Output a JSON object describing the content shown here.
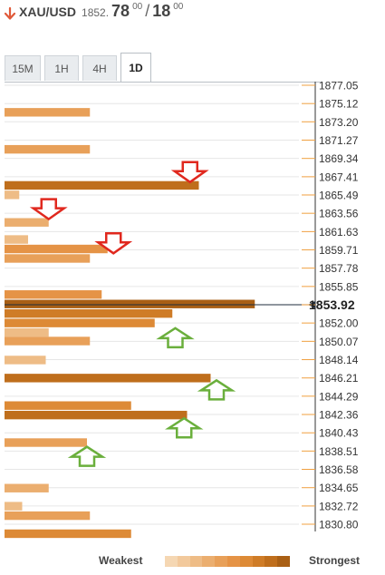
{
  "header": {
    "symbol": "XAU/USD",
    "price_base": "1852.",
    "price_main": "78",
    "price_sup1": "00",
    "price_sep": "/",
    "price_main2": "18",
    "price_sup2": "00",
    "trend": "down",
    "trend_color": "#e05a3a"
  },
  "tabs": [
    {
      "label": "15M",
      "active": false
    },
    {
      "label": "1H",
      "active": false
    },
    {
      "label": "4H",
      "active": false
    },
    {
      "label": "1D",
      "active": true
    }
  ],
  "legend": {
    "weakest_label": "Weakest",
    "strongest_label": "Strongest",
    "colors": [
      "#f5d7b3",
      "#f2c99c",
      "#eebc86",
      "#ebae6f",
      "#e8a059",
      "#e59346",
      "#dd8a36",
      "#cf7c27",
      "#bf6e1c",
      "#a95f14"
    ]
  },
  "chart_data": {
    "type": "bar",
    "orientation": "horizontal",
    "y_ticks": [
      "1877.05",
      "1875.12",
      "1873.20",
      "1871.27",
      "1869.34",
      "1867.41",
      "1865.49",
      "1863.56",
      "1861.63",
      "1859.71",
      "1857.78",
      "1855.85",
      "1853.92",
      "1852.00",
      "1850.07",
      "1848.14",
      "1846.21",
      "1844.29",
      "1842.36",
      "1840.43",
      "1838.51",
      "1836.58",
      "1834.65",
      "1832.72",
      "1830.80"
    ],
    "current_price": 1853.92,
    "current_price_label": "1853.92",
    "x_range": [
      0,
      100
    ],
    "bars": [
      {
        "y": 1874.2,
        "value": 29,
        "strength": 4
      },
      {
        "y": 1870.3,
        "value": 29,
        "strength": 4
      },
      {
        "y": 1866.5,
        "value": 66,
        "strength": 8
      },
      {
        "y": 1865.5,
        "value": 5,
        "strength": 2
      },
      {
        "y": 1862.6,
        "value": 15,
        "strength": 3
      },
      {
        "y": 1860.8,
        "value": 8,
        "strength": 2
      },
      {
        "y": 1859.8,
        "value": 35,
        "strength": 5
      },
      {
        "y": 1858.8,
        "value": 29,
        "strength": 4
      },
      {
        "y": 1855.0,
        "value": 33,
        "strength": 5
      },
      {
        "y": 1854.0,
        "value": 85,
        "strength": 9
      },
      {
        "y": 1853.0,
        "value": 57,
        "strength": 7
      },
      {
        "y": 1852.0,
        "value": 51,
        "strength": 6
      },
      {
        "y": 1851.0,
        "value": 15,
        "strength": 2
      },
      {
        "y": 1850.1,
        "value": 29,
        "strength": 4
      },
      {
        "y": 1848.1,
        "value": 14,
        "strength": 2
      },
      {
        "y": 1846.2,
        "value": 70,
        "strength": 8
      },
      {
        "y": 1843.3,
        "value": 43,
        "strength": 6
      },
      {
        "y": 1842.3,
        "value": 62,
        "strength": 8
      },
      {
        "y": 1839.4,
        "value": 28,
        "strength": 4
      },
      {
        "y": 1834.6,
        "value": 15,
        "strength": 3
      },
      {
        "y": 1832.7,
        "value": 6,
        "strength": 2
      },
      {
        "y": 1831.7,
        "value": 29,
        "strength": 4
      },
      {
        "y": 1829.8,
        "value": 43,
        "strength": 6
      }
    ],
    "annotations": [
      {
        "type": "arrow-down",
        "y": 1867.8,
        "x": 63,
        "color": "#e0281e"
      },
      {
        "type": "arrow-down",
        "y": 1863.9,
        "x": 15,
        "color": "#e0281e"
      },
      {
        "type": "arrow-down",
        "y": 1860.3,
        "x": 37,
        "color": "#e0281e"
      },
      {
        "type": "arrow-up",
        "y": 1850.5,
        "x": 58,
        "color": "#6aaf3c"
      },
      {
        "type": "arrow-up",
        "y": 1845.0,
        "x": 72,
        "color": "#6aaf3c"
      },
      {
        "type": "arrow-up",
        "y": 1841.0,
        "x": 61,
        "color": "#6aaf3c"
      },
      {
        "type": "arrow-up",
        "y": 1838.0,
        "x": 28,
        "color": "#6aaf3c"
      }
    ]
  }
}
